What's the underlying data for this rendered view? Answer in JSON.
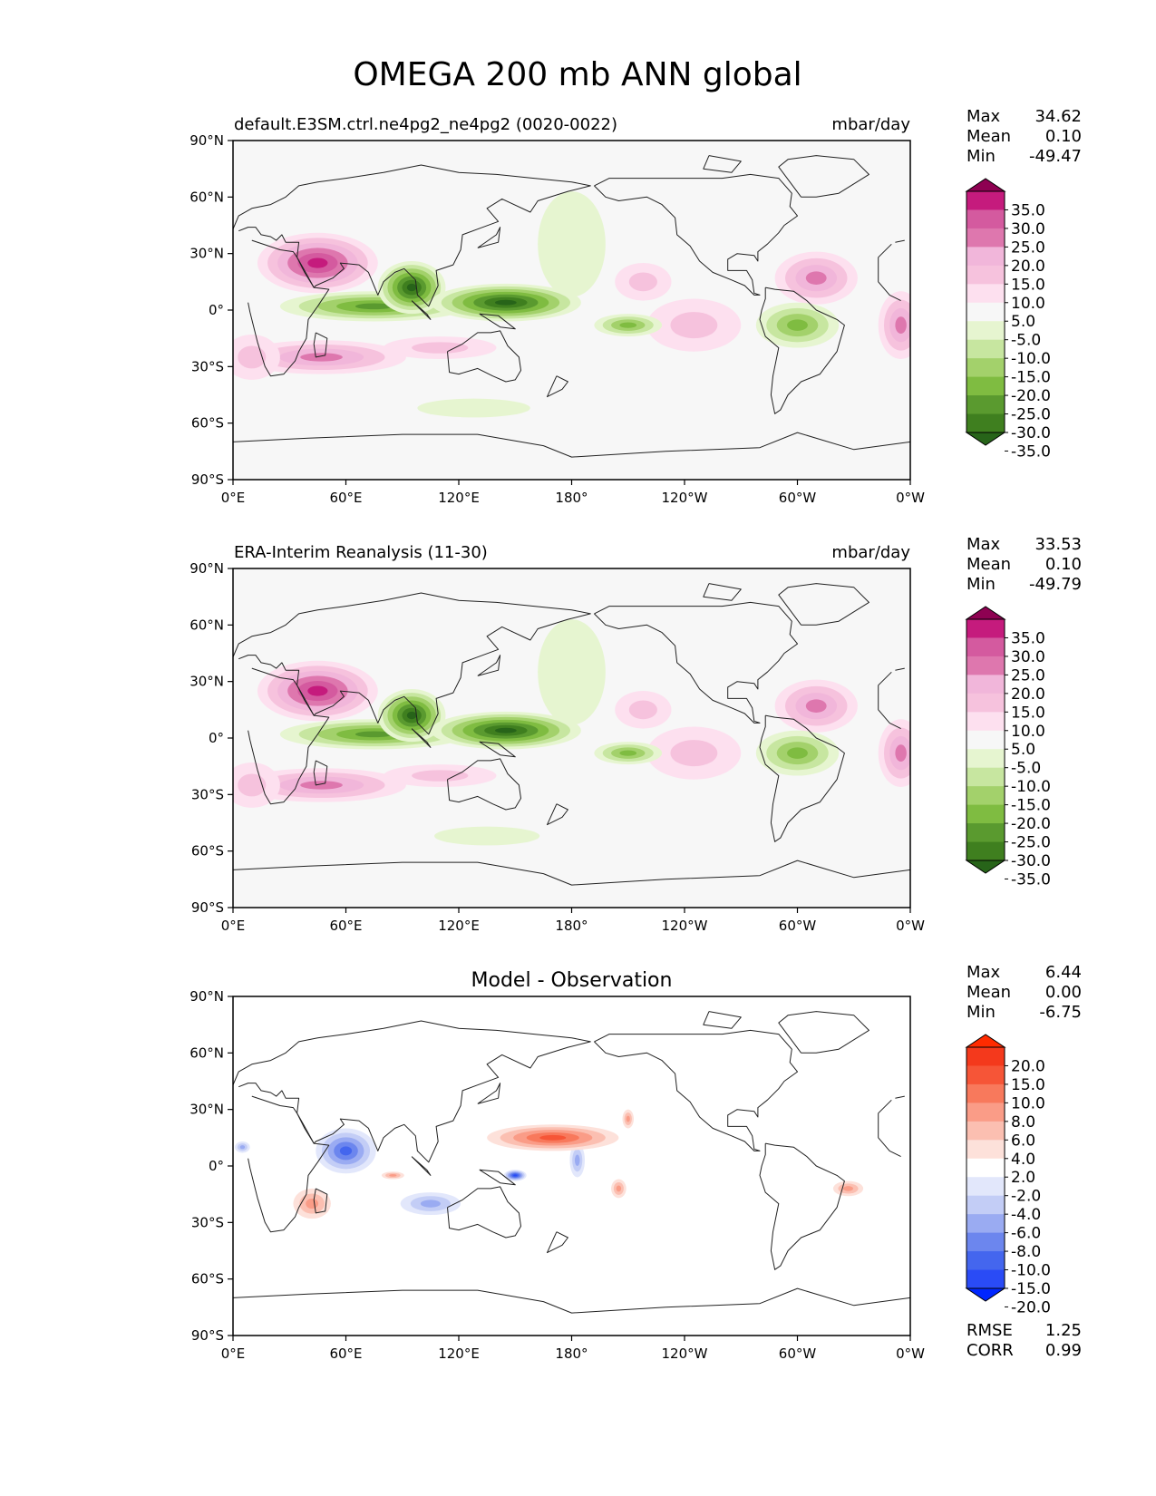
{
  "title": "OMEGA 200 mb ANN global",
  "colors": {
    "ocean_bg": "#f7f7f7",
    "diff_bg": "#ffffff",
    "coast": "#222222",
    "piyg": [
      "#276419",
      "#3f7f1f",
      "#5a9a2f",
      "#7fbc41",
      "#a3d16b",
      "#c7e6a0",
      "#e6f5d0",
      "#f7f7f7",
      "#fde0ef",
      "#f6c2dd",
      "#f1b6da",
      "#de77ae",
      "#d45a9f",
      "#c51b7d",
      "#8e0152"
    ],
    "bwr": [
      "#0026ff",
      "#2a4bf6",
      "#4466ee",
      "#6c86ee",
      "#9aabf2",
      "#c3cdf6",
      "#e2e7fb",
      "#ffffff",
      "#fde1da",
      "#fbbfb1",
      "#fa9c87",
      "#f8795c",
      "#f65537",
      "#f4391c",
      "#ff2b00"
    ]
  },
  "chart_data": [
    {
      "type": "heatmap",
      "panel": "test",
      "title": "default.E3SM.ctrl.ne4pg2_ne4pg2 (0020-0022)",
      "units": "mbar/day",
      "stats": {
        "max_label": "Max",
        "max": "34.62",
        "mean_label": "Mean",
        "mean": "0.10",
        "min_label": "Min",
        "min": "-49.47"
      },
      "colorbar_ticks": [
        "35.0",
        "30.0",
        "25.0",
        "20.0",
        "15.0",
        "10.0",
        "5.0",
        "-5.0",
        "-10.0",
        "-15.0",
        "-20.0",
        "-25.0",
        "-30.0",
        "-35.0"
      ],
      "colorbar_palette": "piyg",
      "x_ticks": [
        "0°E",
        "60°E",
        "120°E",
        "180°",
        "120°W",
        "60°W",
        "0°W"
      ],
      "y_ticks": [
        "90°N",
        "60°N",
        "30°N",
        "0°",
        "30°S",
        "60°S",
        "90°S"
      ],
      "xlim": [
        0,
        360
      ],
      "ylim": [
        -90,
        90
      ],
      "features": [
        {
          "lon": 45,
          "lat": 25,
          "rlon": 32,
          "rlat": 16,
          "value": 34
        },
        {
          "lon": 47,
          "lat": -25,
          "rlon": 45,
          "rlat": 9,
          "value": 20
        },
        {
          "lon": 110,
          "lat": -20,
          "rlon": 30,
          "rlat": 6,
          "value": 10
        },
        {
          "lon": 10,
          "lat": -25,
          "rlon": 15,
          "rlat": 12,
          "value": 12
        },
        {
          "lon": 310,
          "lat": 17,
          "rlon": 22,
          "rlat": 14,
          "value": 20
        },
        {
          "lon": 218,
          "lat": 15,
          "rlon": 15,
          "rlat": 10,
          "value": 12
        },
        {
          "lon": 245,
          "lat": -8,
          "rlon": 25,
          "rlat": 14,
          "value": 10
        },
        {
          "lon": 355,
          "lat": -8,
          "rlon": 12,
          "rlat": 18,
          "value": 22
        },
        {
          "lon": 75,
          "lat": 2,
          "rlon": 50,
          "rlat": 8,
          "value": -30
        },
        {
          "lon": 95,
          "lat": 12,
          "rlon": 18,
          "rlat": 14,
          "value": -40
        },
        {
          "lon": 145,
          "lat": 4,
          "rlon": 40,
          "rlat": 10,
          "value": -40
        },
        {
          "lon": 210,
          "lat": -8,
          "rlon": 18,
          "rlat": 6,
          "value": -25
        },
        {
          "lon": 180,
          "lat": 35,
          "rlon": 18,
          "rlat": 28,
          "value": -7
        },
        {
          "lon": 300,
          "lat": -8,
          "rlon": 22,
          "rlat": 12,
          "value": -22
        },
        {
          "lon": 128,
          "lat": -52,
          "rlon": 30,
          "rlat": 5,
          "value": -8
        }
      ]
    },
    {
      "type": "heatmap",
      "panel": "reference",
      "title": "ERA-Interim Reanalysis (11-30)",
      "units": "mbar/day",
      "stats": {
        "max_label": "Max",
        "max": "33.53",
        "mean_label": "Mean",
        "mean": "0.10",
        "min_label": "Min",
        "min": "-49.79"
      },
      "colorbar_ticks": [
        "35.0",
        "30.0",
        "25.0",
        "20.0",
        "15.0",
        "10.0",
        "5.0",
        "-5.0",
        "-10.0",
        "-15.0",
        "-20.0",
        "-25.0",
        "-30.0",
        "-35.0"
      ],
      "colorbar_palette": "piyg",
      "x_ticks": [
        "0°E",
        "60°E",
        "120°E",
        "180°",
        "120°W",
        "60°W",
        "0°W"
      ],
      "y_ticks": [
        "90°N",
        "60°N",
        "30°N",
        "0°",
        "30°S",
        "60°S",
        "90°S"
      ],
      "xlim": [
        0,
        360
      ],
      "ylim": [
        -90,
        90
      ],
      "features": [
        {
          "lon": 45,
          "lat": 25,
          "rlon": 32,
          "rlat": 16,
          "value": 34
        },
        {
          "lon": 47,
          "lat": -25,
          "rlon": 45,
          "rlat": 9,
          "value": 20
        },
        {
          "lon": 110,
          "lat": -20,
          "rlon": 30,
          "rlat": 6,
          "value": 10
        },
        {
          "lon": 10,
          "lat": -25,
          "rlon": 15,
          "rlat": 12,
          "value": 12
        },
        {
          "lon": 310,
          "lat": 17,
          "rlon": 22,
          "rlat": 14,
          "value": 20
        },
        {
          "lon": 218,
          "lat": 15,
          "rlon": 15,
          "rlat": 10,
          "value": 12
        },
        {
          "lon": 245,
          "lat": -8,
          "rlon": 25,
          "rlat": 14,
          "value": 10
        },
        {
          "lon": 355,
          "lat": -8,
          "rlon": 12,
          "rlat": 18,
          "value": 22
        },
        {
          "lon": 75,
          "lat": 2,
          "rlon": 50,
          "rlat": 8,
          "value": -30
        },
        {
          "lon": 95,
          "lat": 12,
          "rlon": 18,
          "rlat": 14,
          "value": -40
        },
        {
          "lon": 145,
          "lat": 4,
          "rlon": 40,
          "rlat": 10,
          "value": -40
        },
        {
          "lon": 210,
          "lat": -8,
          "rlon": 18,
          "rlat": 6,
          "value": -25
        },
        {
          "lon": 180,
          "lat": 35,
          "rlon": 18,
          "rlat": 28,
          "value": -7
        },
        {
          "lon": 300,
          "lat": -8,
          "rlon": 22,
          "rlat": 12,
          "value": -22
        },
        {
          "lon": 135,
          "lat": -52,
          "rlon": 28,
          "rlat": 5,
          "value": -8
        }
      ]
    },
    {
      "type": "heatmap",
      "panel": "difference",
      "title": "Model - Observation",
      "units": "",
      "stats": {
        "max_label": "Max",
        "max": "6.44",
        "mean_label": "Mean",
        "mean": "0.00",
        "min_label": "Min",
        "min": "-6.75"
      },
      "metrics": {
        "rmse_label": "RMSE",
        "rmse": "1.25",
        "corr_label": "CORR",
        "corr": "0.99"
      },
      "colorbar_ticks": [
        "20.0",
        "15.0",
        "10.0",
        "8.0",
        "6.0",
        "4.0",
        "2.0",
        "-2.0",
        "-4.0",
        "-6.0",
        "-8.0",
        "-10.0",
        "-15.0",
        "-20.0"
      ],
      "colorbar_palette": "bwr",
      "x_ticks": [
        "0°E",
        "60°E",
        "120°E",
        "180°",
        "120°W",
        "60°W",
        "0°W"
      ],
      "y_ticks": [
        "90°N",
        "60°N",
        "30°N",
        "0°",
        "30°S",
        "60°S",
        "90°S"
      ],
      "xlim": [
        0,
        360
      ],
      "ylim": [
        -90,
        90
      ],
      "features": [
        {
          "lon": 60,
          "lat": 8,
          "rlon": 16,
          "rlat": 12,
          "value": -5
        },
        {
          "lon": 105,
          "lat": -20,
          "rlon": 16,
          "rlat": 6,
          "value": -3
        },
        {
          "lon": 183,
          "lat": 3,
          "rlon": 4,
          "rlat": 9,
          "value": -3
        },
        {
          "lon": 150,
          "lat": -5,
          "rlon": 6,
          "rlat": 3,
          "value": -6
        },
        {
          "lon": 5,
          "lat": 10,
          "rlon": 4,
          "rlat": 3,
          "value": -3
        },
        {
          "lon": 170,
          "lat": 15,
          "rlon": 35,
          "rlat": 7,
          "value": 5
        },
        {
          "lon": 42,
          "lat": -20,
          "rlon": 10,
          "rlat": 8,
          "value": 3
        },
        {
          "lon": 205,
          "lat": -12,
          "rlon": 4,
          "rlat": 5,
          "value": 3
        },
        {
          "lon": 327,
          "lat": -12,
          "rlon": 8,
          "rlat": 4,
          "value": 3
        },
        {
          "lon": 210,
          "lat": 25,
          "rlon": 3,
          "rlat": 5,
          "value": 3
        },
        {
          "lon": 85,
          "lat": -5,
          "rlon": 6,
          "rlat": 2,
          "value": 3
        }
      ]
    }
  ]
}
